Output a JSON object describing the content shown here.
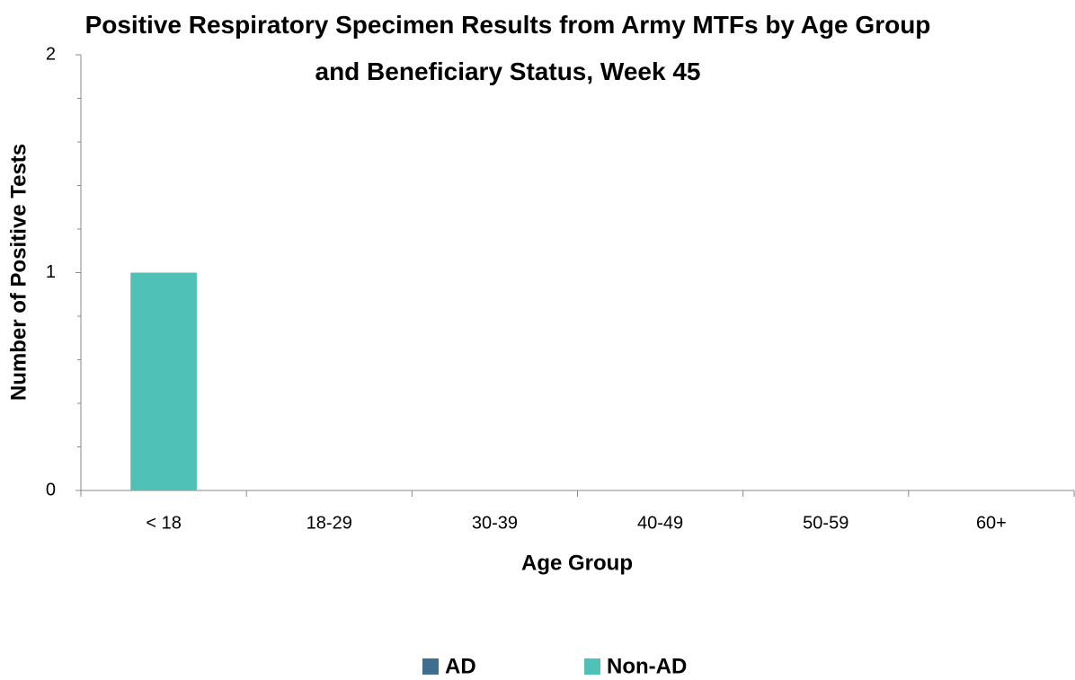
{
  "chart_data": {
    "type": "bar",
    "stacked": true,
    "title": "Positive Respiratory Specimen Results from Army MTFs by Age Group and Beneficiary Status, Week 45",
    "xlabel": "Age Group",
    "ylabel": "Number of Positive Tests",
    "categories": [
      "< 18",
      "18-29",
      "30-39",
      "40-49",
      "50-59",
      "60+"
    ],
    "series": [
      {
        "name": "AD",
        "color": "#3e6f8e",
        "values": [
          0,
          0,
          0,
          0,
          0,
          0
        ]
      },
      {
        "name": "Non-AD",
        "color": "#4fc1b7",
        "values": [
          1,
          0,
          0,
          0,
          0,
          0
        ]
      }
    ],
    "ylim": [
      0,
      2
    ],
    "yticks": [
      0,
      1,
      2
    ],
    "minor_yticks": [
      0.2,
      0.4,
      0.6,
      0.8,
      1.2,
      1.4,
      1.6,
      1.8
    ],
    "grid": false,
    "legend": "bottom"
  }
}
